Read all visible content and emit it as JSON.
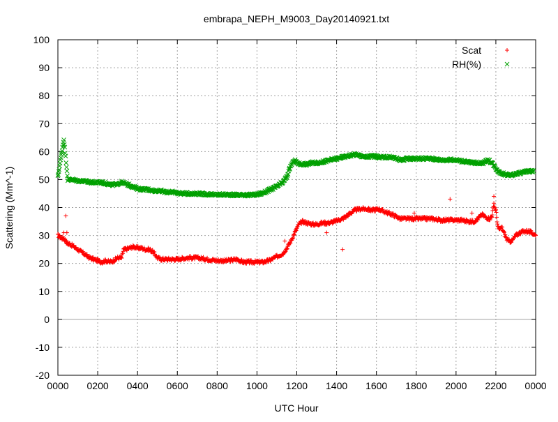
{
  "chart_data": {
    "type": "scatter",
    "title": "embrapa_NEPH_M9003_Day20140921.txt",
    "xlabel": "UTC Hour",
    "ylabel": "Scattering (Mm^-1)",
    "xlim": [
      0,
      24
    ],
    "ylim": [
      -20,
      100
    ],
    "grid": true,
    "legend_position": "top-right",
    "x_ticks": [
      {
        "value": 0,
        "label": "0000"
      },
      {
        "value": 2,
        "label": "0200"
      },
      {
        "value": 4,
        "label": "0400"
      },
      {
        "value": 6,
        "label": "0600"
      },
      {
        "value": 8,
        "label": "0800"
      },
      {
        "value": 10,
        "label": "1000"
      },
      {
        "value": 12,
        "label": "1200"
      },
      {
        "value": 14,
        "label": "1400"
      },
      {
        "value": 16,
        "label": "1600"
      },
      {
        "value": 18,
        "label": "1800"
      },
      {
        "value": 20,
        "label": "2000"
      },
      {
        "value": 22,
        "label": "2200"
      },
      {
        "value": 24,
        "label": "0000"
      }
    ],
    "y_ticks": [
      {
        "value": -20,
        "label": "-20"
      },
      {
        "value": -10,
        "label": "-10"
      },
      {
        "value": 0,
        "label": "0"
      },
      {
        "value": 10,
        "label": "10"
      },
      {
        "value": 20,
        "label": "20"
      },
      {
        "value": 30,
        "label": "30"
      },
      {
        "value": 40,
        "label": "40"
      },
      {
        "value": 50,
        "label": "50"
      },
      {
        "value": 60,
        "label": "60"
      },
      {
        "value": 70,
        "label": "70"
      },
      {
        "value": 80,
        "label": "80"
      },
      {
        "value": 90,
        "label": "90"
      },
      {
        "value": 100,
        "label": "100"
      }
    ],
    "zero_line": true,
    "series": [
      {
        "name": "Scat",
        "marker": "plus",
        "color": "#ff0000",
        "x": [
          0.0,
          0.2,
          0.3,
          0.4,
          0.5,
          0.6,
          0.8,
          1.0,
          1.2,
          1.4,
          1.6,
          1.8,
          2.0,
          2.2,
          2.4,
          2.6,
          2.8,
          3.0,
          3.2,
          3.3,
          3.4,
          3.6,
          3.8,
          4.0,
          4.2,
          4.4,
          4.6,
          4.8,
          5.0,
          5.2,
          5.5,
          6.0,
          6.5,
          7.0,
          7.5,
          8.0,
          8.5,
          9.0,
          9.3,
          9.6,
          10.0,
          10.3,
          10.6,
          11.0,
          11.3,
          11.5,
          11.7,
          11.9,
          12.1,
          12.3,
          12.5,
          12.8,
          13.0,
          13.3,
          13.6,
          13.9,
          14.1,
          14.3,
          14.6,
          14.9,
          15.2,
          15.5,
          15.8,
          16.1,
          16.4,
          16.8,
          17.2,
          17.6,
          18.0,
          18.4,
          18.8,
          19.2,
          19.6,
          20.0,
          20.3,
          20.6,
          20.9,
          21.1,
          21.3,
          21.5,
          21.7,
          21.8,
          21.9,
          22.0,
          22.1,
          22.2,
          22.3,
          22.4,
          22.6,
          22.8,
          23.0,
          23.2,
          23.4,
          23.6,
          23.8,
          24.0
        ],
        "y": [
          30,
          29,
          29,
          28,
          27,
          27,
          26,
          25,
          24,
          23,
          22,
          21.5,
          21,
          20.5,
          21,
          20.5,
          21,
          22,
          22,
          25,
          25,
          25.5,
          26,
          25.5,
          25.5,
          25,
          25,
          24,
          22,
          21.5,
          21.5,
          21.5,
          22,
          22,
          21.5,
          21,
          21,
          21.5,
          20.5,
          20.5,
          20.5,
          20.5,
          21,
          22.5,
          23.5,
          25.5,
          28,
          31,
          34,
          35,
          34.5,
          34,
          34,
          34.5,
          34.5,
          35,
          35.5,
          36,
          37.5,
          39,
          39.5,
          39.5,
          39,
          39.5,
          38.5,
          37.5,
          36,
          36,
          36,
          36,
          36,
          35.5,
          35.5,
          35.5,
          35.5,
          35,
          35,
          36,
          37.5,
          36.5,
          36,
          37,
          41,
          39,
          33,
          32,
          33,
          31,
          28,
          28,
          30,
          31,
          31.5,
          31.5,
          31,
          30
        ],
        "outliers_x": [
          0.4,
          0.45,
          11.4,
          13.5,
          14.3,
          19.7,
          21.9,
          20.8,
          17.9,
          0.3
        ],
        "outliers_y": [
          37,
          31,
          28,
          31,
          25,
          43,
          44,
          38,
          38,
          31
        ]
      },
      {
        "name": "RH(%)",
        "marker": "cross",
        "color": "#00a000",
        "x": [
          0.0,
          0.3,
          0.5,
          0.7,
          1.0,
          1.3,
          1.6,
          1.9,
          2.2,
          2.5,
          2.8,
          3.0,
          3.2,
          3.4,
          3.6,
          3.9,
          4.2,
          4.5,
          4.8,
          5.1,
          5.4,
          5.8,
          6.2,
          6.6,
          7.0,
          7.4,
          7.8,
          8.2,
          8.6,
          9.0,
          9.4,
          9.8,
          10.1,
          10.4,
          10.7,
          11.0,
          11.3,
          11.5,
          11.7,
          11.9,
          12.0,
          12.2,
          12.5,
          12.8,
          13.1,
          13.4,
          13.7,
          14.0,
          14.3,
          14.6,
          14.9,
          15.2,
          15.5,
          15.8,
          16.1,
          16.4,
          16.8,
          17.2,
          17.6,
          18.0,
          18.4,
          18.8,
          19.2,
          19.6,
          20.0,
          20.4,
          20.8,
          21.1,
          21.4,
          21.6,
          21.8,
          22.0,
          22.2,
          22.4,
          22.7,
          23.0,
          23.3,
          23.6,
          23.9
        ],
        "y": [
          51,
          64.5,
          50,
          50,
          49.5,
          49.5,
          49,
          49,
          49,
          48.5,
          48,
          48.5,
          49,
          48.5,
          48,
          47,
          46.5,
          46.5,
          46,
          46,
          45.5,
          45.5,
          45,
          45,
          45,
          44.8,
          44.6,
          44.6,
          44.6,
          44.5,
          44.5,
          44.5,
          44.8,
          45.5,
          46.5,
          47.5,
          49,
          51,
          55,
          57,
          56,
          55.5,
          55.5,
          56,
          56,
          56.5,
          57,
          57.5,
          58,
          58.5,
          59,
          58.5,
          58,
          58.5,
          58,
          58,
          58,
          57,
          57.5,
          57.5,
          57.5,
          57.5,
          57,
          57,
          57,
          56.5,
          56,
          56,
          56,
          57,
          56,
          54,
          52.5,
          52,
          51.5,
          52,
          52.5,
          53,
          53
        ]
      }
    ]
  }
}
